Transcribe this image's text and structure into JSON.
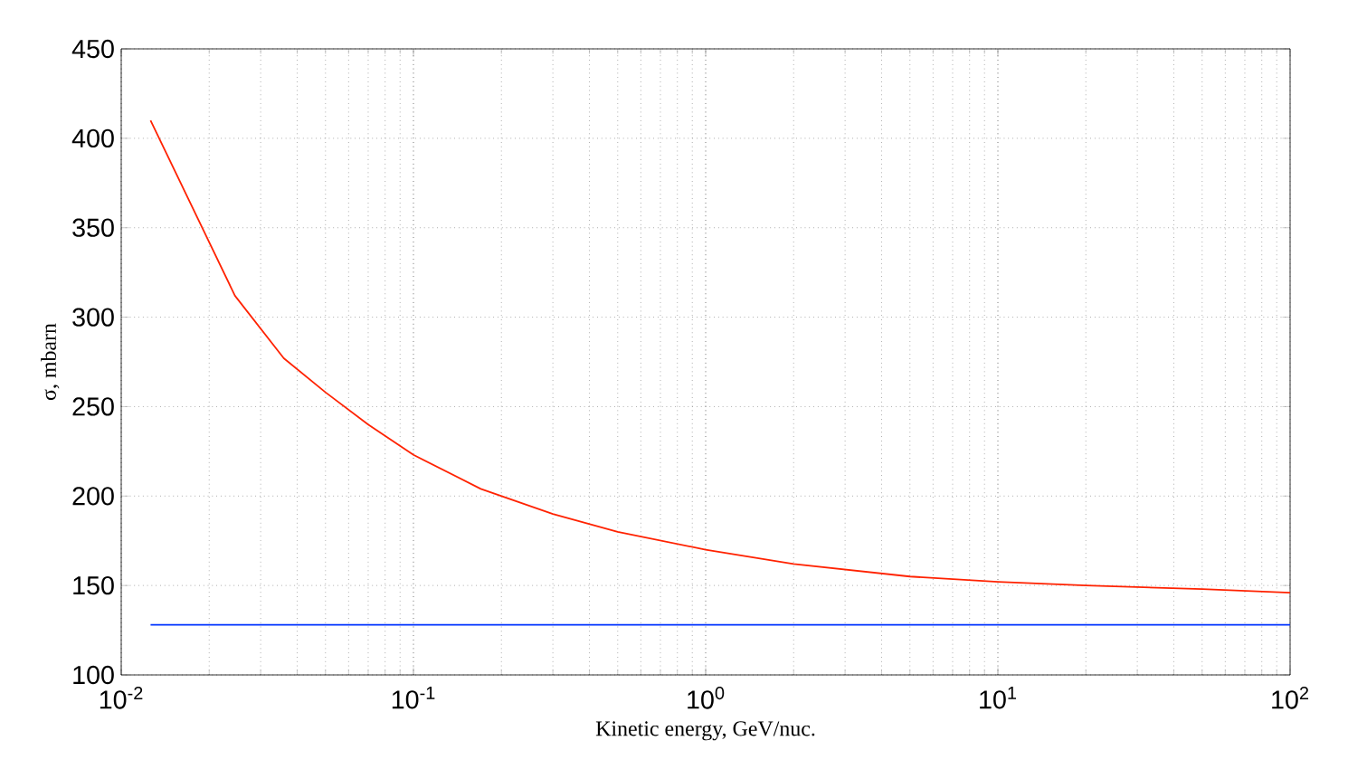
{
  "chart_data": {
    "type": "line",
    "xlabel": "Kinetic energy, GeV/nuc.",
    "ylabel": "σ,  mbarn",
    "log": "x",
    "grid": true,
    "marker": "none",
    "line_style": "solid",
    "xlim": [
      0.01,
      100
    ],
    "ylim": [
      100,
      450
    ],
    "xticks": [
      {
        "value": 0.01,
        "label": "10$^{-2}$"
      },
      {
        "value": 0.1,
        "label": "10$^{-1}$"
      },
      {
        "value": 1,
        "label": "10$^{0}$"
      },
      {
        "value": 10,
        "label": "10$^{1}$"
      },
      {
        "value": 100,
        "label": "10$^{2}$"
      }
    ],
    "yticks": [
      100,
      150,
      200,
      250,
      300,
      350,
      400,
      450
    ],
    "series": [
      {
        "color": "#0033ff",
        "x": [
          0.0126,
          100
        ],
        "values": [
          128,
          128
        ]
      },
      {
        "color": "#ff2200",
        "x": [
          0.0126,
          0.0245,
          0.036,
          0.05,
          0.07,
          0.1,
          0.17,
          0.3,
          0.5,
          1,
          2,
          5,
          10,
          20,
          50,
          100
        ],
        "values": [
          410,
          312,
          277,
          258,
          240,
          223,
          204,
          190,
          180,
          170,
          162,
          155,
          152,
          150,
          148,
          146
        ]
      }
    ]
  }
}
